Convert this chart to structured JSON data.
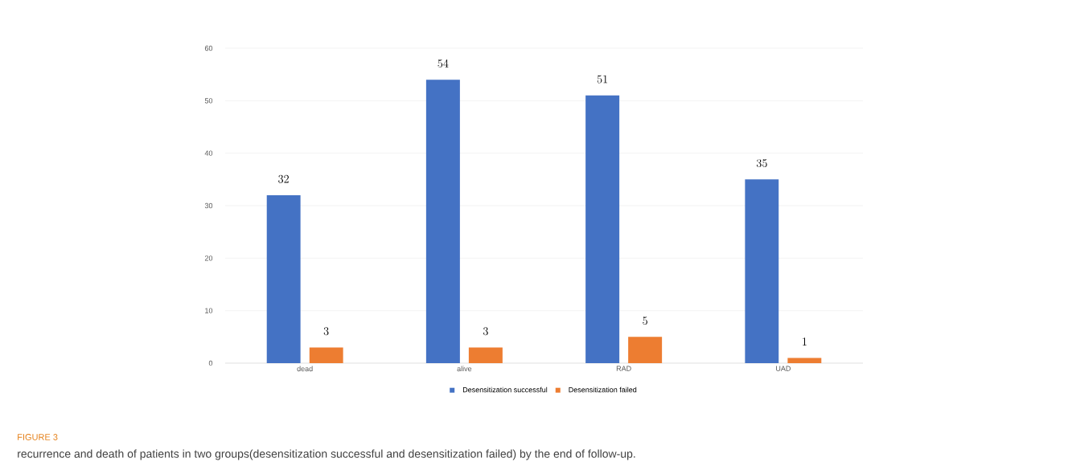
{
  "chart_data": {
    "type": "bar",
    "categories": [
      "dead",
      "alive",
      "RAD",
      "UAD"
    ],
    "series": [
      {
        "name": "Desensitization successful",
        "color": "#4472c4",
        "values": [
          32,
          54,
          51,
          35
        ]
      },
      {
        "name": "Desensitization failed",
        "color": "#ed7d31",
        "values": [
          3,
          3,
          5,
          1
        ]
      }
    ],
    "ylim": [
      0,
      60
    ],
    "yticks": [
      0,
      10,
      20,
      30,
      40,
      50,
      60
    ],
    "grid": "y",
    "legend": "bottom",
    "data_labels": true,
    "annotations": [
      "FIGURE 3",
      "recurrence and death of patients in two groups(desensitization successful and desensitization failed) by the end of follow-up."
    ]
  }
}
